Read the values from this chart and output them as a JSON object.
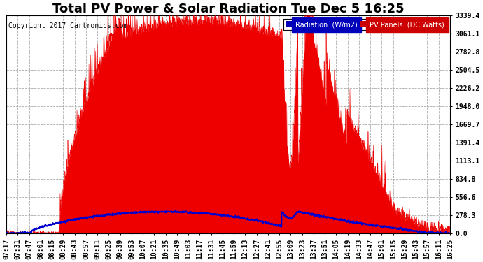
{
  "title": "Total PV Power & Solar Radiation Tue Dec 5 16:25",
  "copyright": "Copyright 2017 Cartronics.com",
  "background_color": "#ffffff",
  "plot_bg_color": "#ffffff",
  "yticks": [
    0.0,
    278.3,
    556.6,
    834.8,
    1113.1,
    1391.4,
    1669.7,
    1948.0,
    2226.2,
    2504.5,
    2782.8,
    3061.1,
    3339.4
  ],
  "ymax": 3339.4,
  "xtick_labels": [
    "07:17",
    "07:31",
    "07:47",
    "08:01",
    "08:15",
    "08:29",
    "08:43",
    "08:57",
    "09:11",
    "09:25",
    "09:39",
    "09:53",
    "10:07",
    "10:21",
    "10:35",
    "10:49",
    "11:03",
    "11:17",
    "11:31",
    "11:45",
    "11:59",
    "12:13",
    "12:27",
    "12:41",
    "12:55",
    "13:09",
    "13:23",
    "13:37",
    "13:51",
    "14:05",
    "14:19",
    "14:33",
    "14:47",
    "15:01",
    "15:15",
    "15:29",
    "15:43",
    "15:57",
    "16:11",
    "16:25"
  ],
  "legend_radiation_color": "#0000bb",
  "legend_pv_color": "#cc0000",
  "grid_color": "#aaaaaa",
  "fill_color": "#ee0000",
  "line_color": "#0000cc",
  "title_fontsize": 13,
  "tick_fontsize": 7,
  "copyright_fontsize": 7
}
